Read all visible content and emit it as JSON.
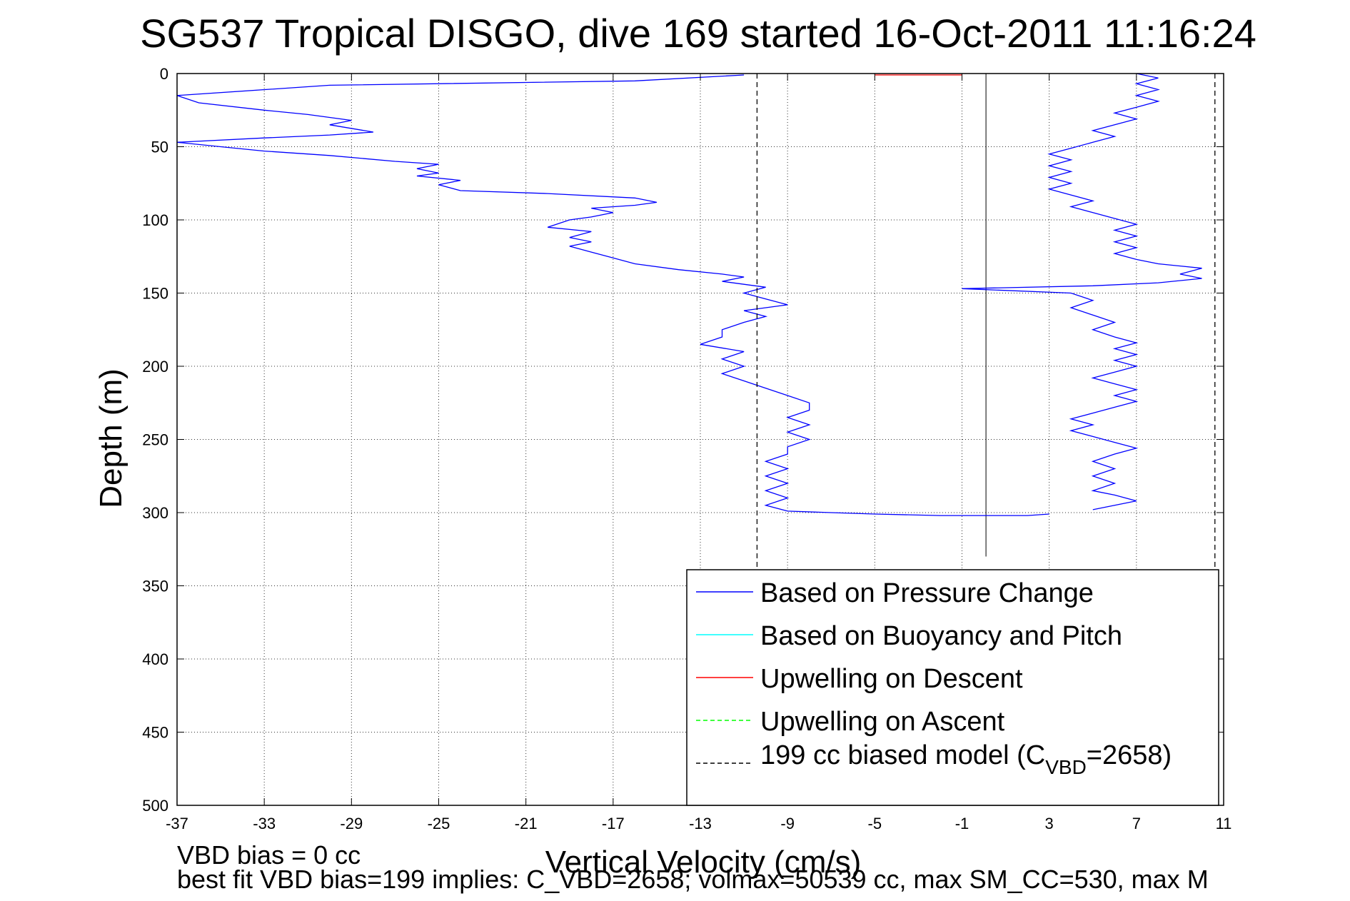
{
  "chart_data": {
    "type": "line",
    "title": "SG537 Tropical DISGO, dive 169 started 16-Oct-2011 11:16:24",
    "xlabel": "Vertical Velocity (cm/s)",
    "ylabel": "Depth (m)",
    "xlim": [
      -37,
      11
    ],
    "ylim": [
      0,
      500
    ],
    "y_reversed": true,
    "grid": true,
    "legend_placement": "bottom-right",
    "x_ticks": [
      -37,
      -33,
      -29,
      -25,
      -21,
      -17,
      -13,
      -9,
      -5,
      -1,
      3,
      7,
      11
    ],
    "y_ticks": [
      0,
      50,
      100,
      150,
      200,
      250,
      300,
      350,
      400,
      450,
      500
    ],
    "legend": {
      "pressure": "Based on Pressure Change",
      "buoyancy": "Based on Buoyancy and Pitch",
      "up_descent": "Upwelling on Descent",
      "up_ascent": "Upwelling on Ascent",
      "model_prefix": "199 cc biased model (C",
      "model_sub": "VBD",
      "model_suffix": "=2658)"
    },
    "colors": {
      "pressure": "#0000ff",
      "buoyancy": "#00ffff",
      "up_descent": "#ff0000",
      "up_ascent": "#00ff00",
      "model": "#000000"
    },
    "series": [
      {
        "name": "Based on Pressure Change",
        "segment": "descent",
        "points": [
          [
            -11,
            1
          ],
          [
            -16,
            5
          ],
          [
            -30,
            8
          ],
          [
            -37,
            15
          ],
          [
            -36,
            20
          ],
          [
            -33,
            25
          ],
          [
            -31,
            28
          ],
          [
            -29,
            32
          ],
          [
            -30,
            35
          ],
          [
            -28,
            40
          ],
          [
            -30,
            42
          ],
          [
            -33,
            44
          ],
          [
            -37,
            47
          ],
          [
            -35,
            50
          ],
          [
            -33,
            53
          ],
          [
            -30,
            56
          ],
          [
            -27,
            60
          ],
          [
            -25,
            62
          ],
          [
            -26,
            65
          ],
          [
            -25,
            68
          ],
          [
            -26,
            70
          ],
          [
            -24,
            73
          ],
          [
            -25,
            76
          ],
          [
            -24,
            80
          ],
          [
            -20,
            82
          ],
          [
            -16,
            85
          ],
          [
            -15,
            88
          ],
          [
            -16,
            90
          ],
          [
            -18,
            92
          ],
          [
            -17,
            95
          ],
          [
            -18,
            98
          ],
          [
            -19,
            100
          ],
          [
            -20,
            105
          ],
          [
            -18,
            108
          ],
          [
            -19,
            112
          ],
          [
            -18,
            115
          ],
          [
            -19,
            118
          ],
          [
            -18,
            122
          ],
          [
            -17,
            126
          ],
          [
            -16,
            130
          ],
          [
            -14,
            134
          ],
          [
            -12,
            137
          ],
          [
            -11,
            139
          ],
          [
            -12,
            142
          ],
          [
            -10,
            146
          ],
          [
            -11,
            150
          ],
          [
            -10,
            154
          ],
          [
            -9,
            158
          ],
          [
            -11,
            162
          ],
          [
            -10,
            166
          ],
          [
            -11,
            170
          ],
          [
            -12,
            175
          ],
          [
            -12,
            180
          ],
          [
            -13,
            185
          ],
          [
            -11,
            190
          ],
          [
            -12,
            195
          ],
          [
            -11,
            200
          ],
          [
            -12,
            205
          ],
          [
            -11,
            210
          ],
          [
            -10,
            215
          ],
          [
            -9,
            220
          ],
          [
            -8,
            225
          ],
          [
            -8,
            230
          ],
          [
            -9,
            235
          ],
          [
            -8,
            240
          ],
          [
            -9,
            245
          ],
          [
            -8,
            250
          ],
          [
            -9,
            255
          ],
          [
            -9,
            260
          ],
          [
            -10,
            265
          ],
          [
            -9,
            270
          ],
          [
            -10,
            275
          ],
          [
            -9,
            280
          ],
          [
            -10,
            285
          ],
          [
            -9,
            290
          ],
          [
            -10,
            295
          ],
          [
            -9,
            299
          ],
          [
            -7,
            300
          ],
          [
            -5,
            301
          ],
          [
            -2,
            302
          ],
          [
            2,
            302
          ],
          [
            3,
            301
          ]
        ]
      },
      {
        "name": "Based on Pressure Change",
        "segment": "ascent",
        "points": [
          [
            5,
            298
          ],
          [
            6,
            295
          ],
          [
            7,
            292
          ],
          [
            6,
            288
          ],
          [
            5,
            285
          ],
          [
            6,
            280
          ],
          [
            5,
            275
          ],
          [
            6,
            270
          ],
          [
            5,
            265
          ],
          [
            6,
            260
          ],
          [
            7,
            256
          ],
          [
            6,
            252
          ],
          [
            5,
            248
          ],
          [
            4,
            244
          ],
          [
            5,
            240
          ],
          [
            4,
            236
          ],
          [
            5,
            232
          ],
          [
            6,
            228
          ],
          [
            7,
            224
          ],
          [
            6,
            220
          ],
          [
            7,
            216
          ],
          [
            6,
            212
          ],
          [
            5,
            208
          ],
          [
            6,
            204
          ],
          [
            7,
            200
          ],
          [
            6,
            196
          ],
          [
            7,
            192
          ],
          [
            6,
            188
          ],
          [
            7,
            184
          ],
          [
            6,
            180
          ],
          [
            5,
            175
          ],
          [
            6,
            170
          ],
          [
            5,
            165
          ],
          [
            4,
            160
          ],
          [
            5,
            155
          ],
          [
            4,
            150
          ],
          [
            -1,
            147
          ],
          [
            5,
            145
          ],
          [
            8,
            143
          ],
          [
            10,
            140
          ],
          [
            9,
            137
          ],
          [
            10,
            133
          ],
          [
            8,
            130
          ],
          [
            7,
            127
          ],
          [
            6,
            123
          ],
          [
            7,
            119
          ],
          [
            6,
            115
          ],
          [
            7,
            111
          ],
          [
            6,
            107
          ],
          [
            7,
            103
          ],
          [
            6,
            99
          ],
          [
            5,
            95
          ],
          [
            4,
            91
          ],
          [
            5,
            87
          ],
          [
            4,
            83
          ],
          [
            3,
            79
          ],
          [
            4,
            75
          ],
          [
            3,
            71
          ],
          [
            4,
            67
          ],
          [
            3,
            63
          ],
          [
            4,
            59
          ],
          [
            3,
            55
          ],
          [
            4,
            51
          ],
          [
            5,
            47
          ],
          [
            6,
            43
          ],
          [
            5,
            39
          ],
          [
            6,
            35
          ],
          [
            7,
            31
          ],
          [
            6,
            27
          ],
          [
            7,
            23
          ],
          [
            8,
            19
          ],
          [
            7,
            15
          ],
          [
            8,
            11
          ],
          [
            7,
            7
          ],
          [
            8,
            3
          ],
          [
            7,
            0
          ]
        ]
      },
      {
        "name": "Upwelling on Descent",
        "points": [
          [
            -5,
            1
          ],
          [
            -1,
            1
          ]
        ]
      },
      {
        "name": "199 cc biased model",
        "x": -10.4
      },
      {
        "name": "199 cc biased model",
        "x": 10.6
      }
    ]
  },
  "reference_line_x": 0.1,
  "footnotes": {
    "line1": "VBD bias = 0 cc",
    "line2": "best fit VBD bias=199 implies: C_VBD=2658; volmax=50539 cc, max SM_CC=530, max M"
  }
}
